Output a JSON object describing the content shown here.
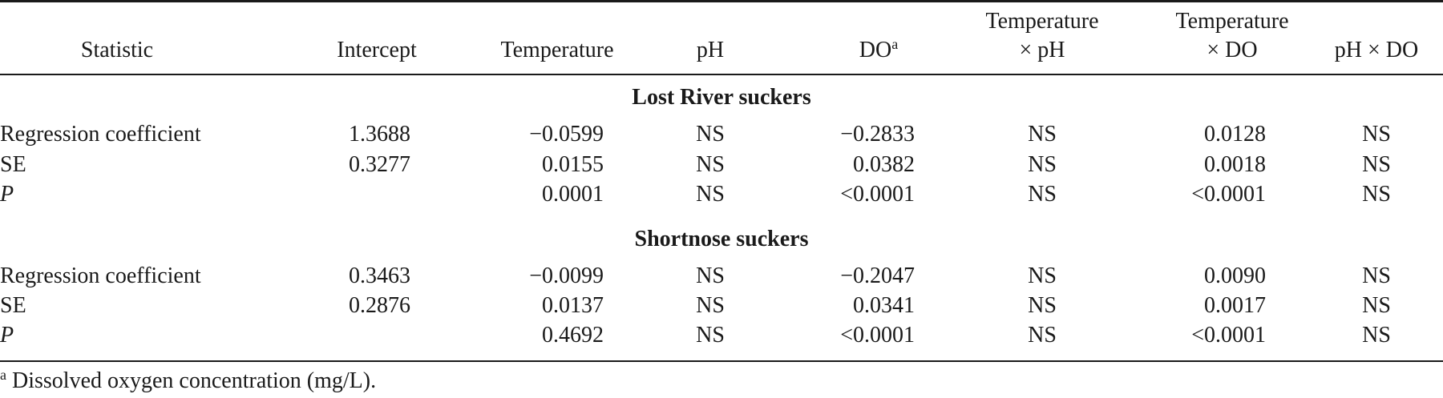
{
  "table": {
    "headers": {
      "statistic": "Statistic",
      "intercept": "Intercept",
      "temperature": "Temperature",
      "ph": "pH",
      "do": "DO",
      "do_sup": "a",
      "temp_ph_line1": "Temperature",
      "temp_ph_line2": "× pH",
      "temp_do_line1": "Temperature",
      "temp_do_line2": "× DO",
      "ph_do": "pH × DO"
    },
    "sections": [
      {
        "title": "Lost River suckers",
        "rows": [
          {
            "label": "Regression coefficient",
            "intercept": "1.3688",
            "temperature": "−0.0599",
            "ph": "NS",
            "do": "−0.2833",
            "temp_ph": "NS",
            "temp_do": "0.0128",
            "ph_do": "NS"
          },
          {
            "label": "SE",
            "intercept": "0.3277",
            "temperature": "0.0155",
            "ph": "NS",
            "do": "0.0382",
            "temp_ph": "NS",
            "temp_do": "0.0018",
            "ph_do": "NS"
          },
          {
            "label": "P",
            "intercept": "",
            "temperature": "0.0001",
            "ph": "NS",
            "do": "<0.0001",
            "temp_ph": "NS",
            "temp_do": "<0.0001",
            "ph_do": "NS"
          }
        ]
      },
      {
        "title": "Shortnose suckers",
        "rows": [
          {
            "label": "Regression coefficient",
            "intercept": "0.3463",
            "temperature": "−0.0099",
            "ph": "NS",
            "do": "−0.2047",
            "temp_ph": "NS",
            "temp_do": "0.0090",
            "ph_do": "NS"
          },
          {
            "label": "SE",
            "intercept": "0.2876",
            "temperature": "0.0137",
            "ph": "NS",
            "do": "0.0341",
            "temp_ph": "NS",
            "temp_do": "0.0017",
            "ph_do": "NS"
          },
          {
            "label": "P",
            "intercept": "",
            "temperature": "0.4692",
            "ph": "NS",
            "do": "<0.0001",
            "temp_ph": "NS",
            "temp_do": "<0.0001",
            "ph_do": "NS"
          }
        ]
      }
    ],
    "footnote_sup": "a",
    "footnote": "Dissolved oxygen concentration (mg/L)."
  }
}
